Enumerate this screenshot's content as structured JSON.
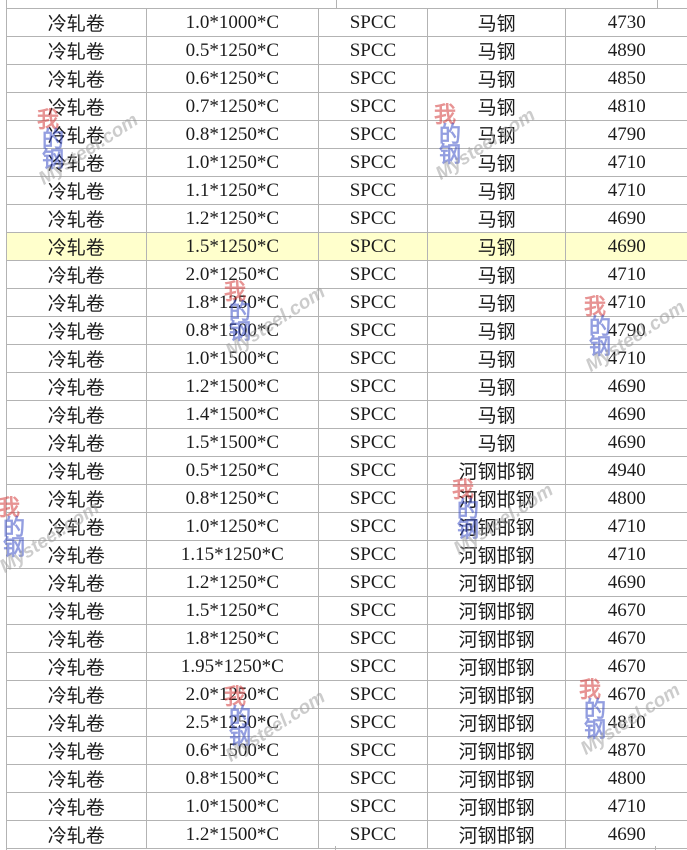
{
  "table": {
    "grid_color": "#b3b3b3",
    "text_color": "#1c1c1c",
    "highlight_color": "#ffffcc",
    "rows": [
      {
        "product": "冷轧卷",
        "spec": "1.0*1000*C",
        "grade": "SPCC",
        "mill": "马钢",
        "price": "4730",
        "highlighted": false
      },
      {
        "product": "冷轧卷",
        "spec": "0.5*1250*C",
        "grade": "SPCC",
        "mill": "马钢",
        "price": "4890",
        "highlighted": false
      },
      {
        "product": "冷轧卷",
        "spec": "0.6*1250*C",
        "grade": "SPCC",
        "mill": "马钢",
        "price": "4850",
        "highlighted": false
      },
      {
        "product": "冷轧卷",
        "spec": "0.7*1250*C",
        "grade": "SPCC",
        "mill": "马钢",
        "price": "4810",
        "highlighted": false
      },
      {
        "product": "冷轧卷",
        "spec": "0.8*1250*C",
        "grade": "SPCC",
        "mill": "马钢",
        "price": "4790",
        "highlighted": false
      },
      {
        "product": "冷轧卷",
        "spec": "1.0*1250*C",
        "grade": "SPCC",
        "mill": "马钢",
        "price": "4710",
        "highlighted": false
      },
      {
        "product": "冷轧卷",
        "spec": "1.1*1250*C",
        "grade": "SPCC",
        "mill": "马钢",
        "price": "4710",
        "highlighted": false
      },
      {
        "product": "冷轧卷",
        "spec": "1.2*1250*C",
        "grade": "SPCC",
        "mill": "马钢",
        "price": "4690",
        "highlighted": false
      },
      {
        "product": "冷轧卷",
        "spec": "1.5*1250*C",
        "grade": "SPCC",
        "mill": "马钢",
        "price": "4690",
        "highlighted": true
      },
      {
        "product": "冷轧卷",
        "spec": "2.0*1250*C",
        "grade": "SPCC",
        "mill": "马钢",
        "price": "4710",
        "highlighted": false
      },
      {
        "product": "冷轧卷",
        "spec": "1.8*1250*C",
        "grade": "SPCC",
        "mill": "马钢",
        "price": "4710",
        "highlighted": false
      },
      {
        "product": "冷轧卷",
        "spec": "0.8*1500*C",
        "grade": "SPCC",
        "mill": "马钢",
        "price": "4790",
        "highlighted": false
      },
      {
        "product": "冷轧卷",
        "spec": "1.0*1500*C",
        "grade": "SPCC",
        "mill": "马钢",
        "price": "4710",
        "highlighted": false
      },
      {
        "product": "冷轧卷",
        "spec": "1.2*1500*C",
        "grade": "SPCC",
        "mill": "马钢",
        "price": "4690",
        "highlighted": false
      },
      {
        "product": "冷轧卷",
        "spec": "1.4*1500*C",
        "grade": "SPCC",
        "mill": "马钢",
        "price": "4690",
        "highlighted": false
      },
      {
        "product": "冷轧卷",
        "spec": "1.5*1500*C",
        "grade": "SPCC",
        "mill": "马钢",
        "price": "4690",
        "highlighted": false
      },
      {
        "product": "冷轧卷",
        "spec": "0.5*1250*C",
        "grade": "SPCC",
        "mill": "河钢邯钢",
        "price": "4940",
        "highlighted": false
      },
      {
        "product": "冷轧卷",
        "spec": "0.8*1250*C",
        "grade": "SPCC",
        "mill": "河钢邯钢",
        "price": "4800",
        "highlighted": false
      },
      {
        "product": "冷轧卷",
        "spec": "1.0*1250*C",
        "grade": "SPCC",
        "mill": "河钢邯钢",
        "price": "4710",
        "highlighted": false
      },
      {
        "product": "冷轧卷",
        "spec": "1.15*1250*C",
        "grade": "SPCC",
        "mill": "河钢邯钢",
        "price": "4710",
        "highlighted": false
      },
      {
        "product": "冷轧卷",
        "spec": "1.2*1250*C",
        "grade": "SPCC",
        "mill": "河钢邯钢",
        "price": "4690",
        "highlighted": false
      },
      {
        "product": "冷轧卷",
        "spec": "1.5*1250*C",
        "grade": "SPCC",
        "mill": "河钢邯钢",
        "price": "4670",
        "highlighted": false
      },
      {
        "product": "冷轧卷",
        "spec": "1.8*1250*C",
        "grade": "SPCC",
        "mill": "河钢邯钢",
        "price": "4670",
        "highlighted": false
      },
      {
        "product": "冷轧卷",
        "spec": "1.95*1250*C",
        "grade": "SPCC",
        "mill": "河钢邯钢",
        "price": "4670",
        "highlighted": false
      },
      {
        "product": "冷轧卷",
        "spec": "2.0*1250*C",
        "grade": "SPCC",
        "mill": "河钢邯钢",
        "price": "4670",
        "highlighted": false
      },
      {
        "product": "冷轧卷",
        "spec": "2.5*1250*C",
        "grade": "SPCC",
        "mill": "河钢邯钢",
        "price": "4810",
        "highlighted": false
      },
      {
        "product": "冷轧卷",
        "spec": "0.6*1500*C",
        "grade": "SPCC",
        "mill": "河钢邯钢",
        "price": "4870",
        "highlighted": false
      },
      {
        "product": "冷轧卷",
        "spec": "0.8*1500*C",
        "grade": "SPCC",
        "mill": "河钢邯钢",
        "price": "4800",
        "highlighted": false
      },
      {
        "product": "冷轧卷",
        "spec": "1.0*1500*C",
        "grade": "SPCC",
        "mill": "河钢邯钢",
        "price": "4710",
        "highlighted": false
      },
      {
        "product": "冷轧卷",
        "spec": "1.2*1500*C",
        "grade": "SPCC",
        "mill": "河钢邯钢",
        "price": "4690",
        "highlighted": false
      }
    ]
  },
  "watermark": {
    "text": "Mysteel.com",
    "logo_chars": [
      "我",
      "的",
      "钢"
    ],
    "red": "#d43c3c",
    "blue": "#3c50c8",
    "gray": "#9a9a9a"
  }
}
